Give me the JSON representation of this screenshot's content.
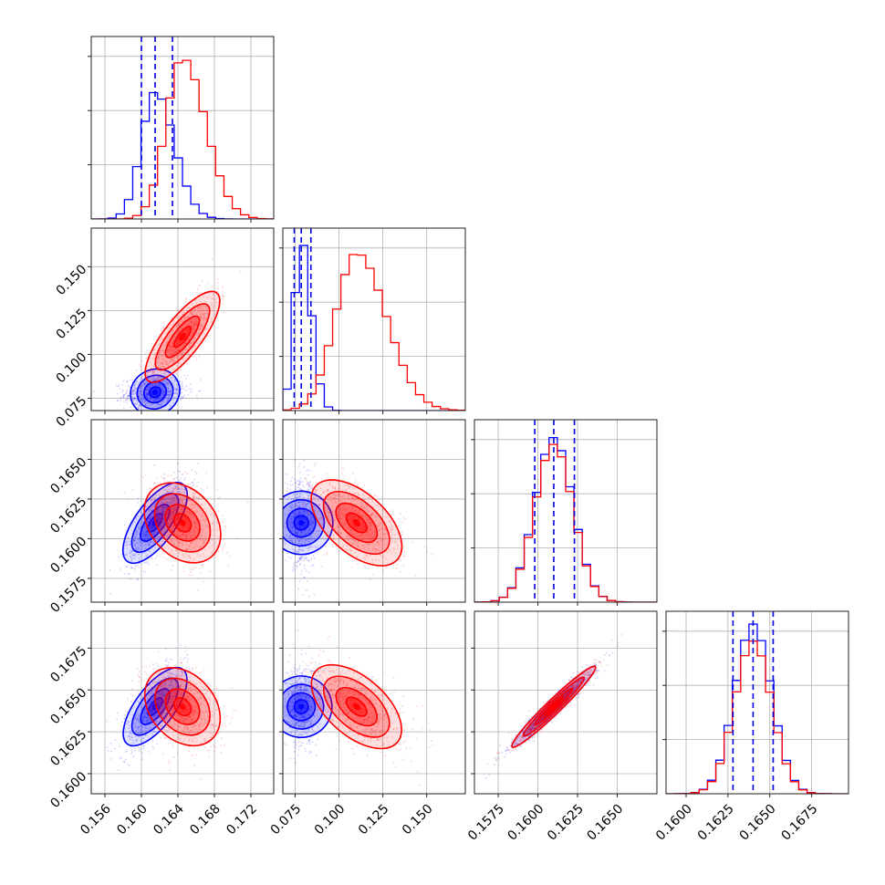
{
  "chart_data": {
    "type": "corner",
    "grid": true,
    "parameters": [
      "p1",
      "p2",
      "p3",
      "p4"
    ],
    "axis_ranges": {
      "p1": [
        0.1545,
        0.1745
      ],
      "p2": [
        0.068,
        0.172
      ],
      "p3": [
        0.156,
        0.1675
      ],
      "p4": [
        0.1588,
        0.1697
      ]
    },
    "histogram_ticks": {
      "p1": [
        "0.156",
        "0.160",
        "0.164",
        "0.168",
        "0.172"
      ],
      "p2": [
        "0.075",
        "0.100",
        "0.125",
        "0.150"
      ],
      "p3": [
        "0.1575",
        "0.1600",
        "0.1625",
        "0.1650"
      ],
      "p4": [
        "0.1600",
        "0.1625",
        "0.1650",
        "0.1675"
      ]
    },
    "row_tick_labels": {
      "p2": [
        "0.075",
        "0.100",
        "0.125",
        "0.150"
      ],
      "p3": [
        "0.1575",
        "0.1600",
        "0.1625",
        "0.1650"
      ],
      "p4": [
        "0.1600",
        "0.1625",
        "0.1650",
        "0.1675"
      ]
    },
    "col_tick_labels": {
      "p1": [
        "0.156",
        "0.160",
        "0.164",
        "0.168",
        "0.172"
      ],
      "p2": [
        "0.075",
        "0.100",
        "0.125",
        "0.150"
      ],
      "p3": [
        "0.1575",
        "0.1600",
        "0.1625",
        "0.1650"
      ],
      "p4": [
        "0.1600",
        "0.1625",
        "0.1650",
        "0.1675"
      ]
    },
    "series": [
      {
        "color": "#0000ff",
        "means": [
          0.1615,
          0.0785,
          0.161,
          0.164
        ],
        "sds": [
          0.0015,
          0.004,
          0.0012,
          0.0011
        ],
        "quantiles": {
          "p1": [
            0.16,
            0.1615,
            0.1634
          ],
          "p2": [
            0.0745,
            0.0785,
            0.084
          ],
          "p3": [
            0.1598,
            0.161,
            0.1623
          ],
          "p4": [
            0.1628,
            0.164,
            0.1652
          ]
        },
        "hist_peaks": {
          "p1": 0.75,
          "p2": 1.0,
          "p3": 0.97,
          "p4": 1.0
        }
      },
      {
        "color": "#ff0000",
        "means": [
          0.1645,
          0.11,
          0.161,
          0.164
        ],
        "sds": [
          0.0018,
          0.012,
          0.0012,
          0.0011
        ],
        "hist_peaks": {
          "p1": 0.95,
          "p2": 0.93,
          "p3": 0.93,
          "p4": 0.9
        }
      }
    ],
    "correlations": {
      "blue": {
        "1-0": 0.1,
        "2-0": 0.7,
        "2-1": 0.0,
        "3-0": 0.7,
        "3-1": 0.0,
        "3-2": 0.97
      },
      "red": {
        "1-0": 0.8,
        "2-0": -0.3,
        "2-1": -0.55,
        "3-0": -0.3,
        "3-1": -0.55,
        "3-2": 0.97
      }
    }
  }
}
